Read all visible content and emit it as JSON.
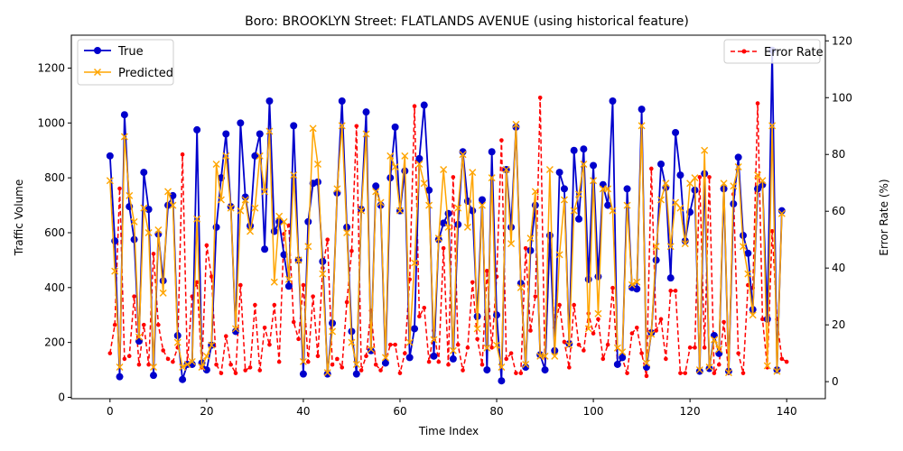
{
  "chart_data": {
    "type": "line",
    "title": "Boro: BROOKLYN Street: FLATLANDS AVENUE (using historical feature)",
    "xlabel": "Time Index",
    "ylabel": "Traffic Volume",
    "y2label": "Error Rate (%)",
    "xlim": [
      -8,
      148
    ],
    "ylim": [
      -5,
      1320
    ],
    "y2lim": [
      -6,
      122
    ],
    "xticks": [
      0,
      20,
      40,
      60,
      80,
      100,
      120,
      140
    ],
    "yticks": [
      0,
      200,
      400,
      600,
      800,
      1000,
      1200
    ],
    "y2ticks": [
      0,
      20,
      40,
      60,
      80,
      100,
      120
    ],
    "legend_left_placement": "upper-left",
    "legend_right_placement": "upper-right",
    "series": [
      {
        "name": "True",
        "axis": "left",
        "color": "#0000cc",
        "marker": "circle",
        "values": [
          880,
          570,
          75,
          1030,
          695,
          575,
          205,
          820,
          685,
          80,
          595,
          425,
          700,
          735,
          225,
          65,
          120,
          120,
          975,
          125,
          100,
          190,
          620,
          800,
          960,
          695,
          240,
          1000,
          730,
          625,
          880,
          960,
          540,
          1080,
          605,
          640,
          520,
          405,
          990,
          500,
          85,
          640,
          780,
          785,
          495,
          85,
          270,
          745,
          1080,
          620,
          240,
          85,
          685,
          1040,
          170,
          770,
          700,
          125,
          800,
          985,
          680,
          825,
          145,
          250,
          870,
          1065,
          755,
          150,
          575,
          635,
          670,
          140,
          630,
          895,
          715,
          680,
          295,
          720,
          100,
          895,
          300,
          60,
          830,
          620,
          985,
          415,
          110,
          535,
          700,
          155,
          100,
          590,
          170,
          820,
          760,
          195,
          900,
          650,
          905,
          430,
          845,
          440,
          775,
          700,
          1080,
          120,
          145,
          760,
          400,
          395,
          1050,
          110,
          235,
          500,
          850,
          765,
          435,
          965,
          810,
          570,
          675,
          755,
          95,
          815,
          105,
          225,
          160,
          760,
          95,
          705,
          875,
          590,
          525,
          320,
          760,
          775,
          285,
          1265,
          100,
          680
        ]
      },
      {
        "name": "Predicted",
        "axis": "left",
        "color": "#ffa500",
        "marker": "x",
        "values": [
          790,
          460,
          110,
          950,
          735,
          640,
          220,
          690,
          600,
          110,
          610,
          380,
          750,
          700,
          200,
          110,
          120,
          130,
          650,
          110,
          150,
          190,
          850,
          720,
          880,
          690,
          250,
          680,
          720,
          605,
          690,
          880,
          750,
          970,
          420,
          660,
          640,
          430,
          810,
          500,
          130,
          550,
          980,
          850,
          450,
          90,
          240,
          760,
          990,
          600,
          200,
          120,
          680,
          960,
          175,
          750,
          710,
          145,
          880,
          840,
          680,
          880,
          200,
          490,
          850,
          780,
          700,
          210,
          580,
          830,
          620,
          170,
          690,
          885,
          620,
          820,
          250,
          700,
          180,
          800,
          190,
          110,
          830,
          560,
          995,
          400,
          120,
          580,
          750,
          150,
          150,
          830,
          150,
          520,
          720,
          190,
          680,
          740,
          850,
          250,
          790,
          305,
          760,
          760,
          680,
          180,
          165,
          700,
          410,
          420,
          990,
          125,
          230,
          550,
          720,
          780,
          550,
          710,
          690,
          560,
          780,
          800,
          100,
          900,
          110,
          210,
          175,
          780,
          90,
          770,
          840,
          550,
          450,
          300,
          810,
          790,
          115,
          990,
          95,
          670
        ]
      },
      {
        "name": "Error Rate",
        "axis": "right",
        "color": "#ff0000",
        "marker": "dot",
        "values": [
          10,
          20,
          68,
          8,
          9,
          30,
          6,
          20,
          6,
          45,
          20,
          11,
          8,
          7,
          12,
          80,
          6,
          30,
          35,
          5,
          48,
          37,
          6,
          3,
          16,
          6,
          3,
          34,
          4,
          5,
          27,
          4,
          19,
          13,
          27,
          7,
          52,
          55,
          21,
          15,
          34,
          7,
          30,
          9,
          40,
          50,
          6,
          8,
          5,
          28,
          46,
          90,
          4,
          9,
          25,
          6,
          4,
          7,
          13,
          13,
          3,
          10,
          36,
          97,
          23,
          26,
          7,
          18,
          7,
          47,
          6,
          72,
          13,
          4,
          12,
          35,
          15,
          6,
          39,
          12,
          37,
          85,
          8,
          10,
          3,
          3,
          47,
          18,
          30,
          100,
          4,
          52,
          19,
          27,
          14,
          5,
          27,
          13,
          11,
          24,
          17,
          22,
          8,
          13,
          33,
          6,
          8,
          3,
          17,
          19,
          10,
          2,
          75,
          18,
          22,
          8,
          32,
          32,
          3,
          3,
          12,
          12,
          72,
          12,
          72,
          3,
          6,
          21,
          3,
          66,
          10,
          3,
          34,
          33,
          98,
          22,
          5,
          53,
          22,
          8,
          7
        ]
      }
    ]
  }
}
